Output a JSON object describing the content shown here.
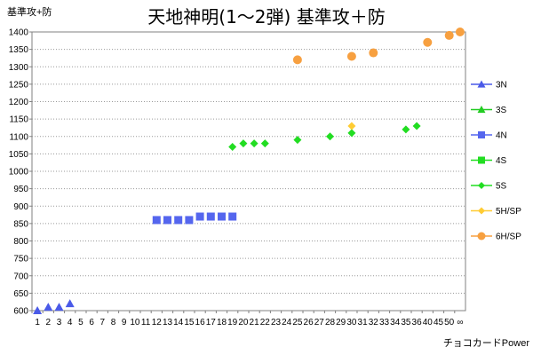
{
  "chart_data": {
    "type": "scatter",
    "title": "天地神明(1～2弾) 基準攻＋防",
    "ylabel": "基準攻+防",
    "xlabel": "チョコカードPower",
    "ylim": [
      600,
      1400
    ],
    "ystep": 50,
    "categories": [
      "1",
      "2",
      "3",
      "4",
      "5",
      "6",
      "7",
      "8",
      "9",
      "10",
      "11",
      "12",
      "13",
      "14",
      "15",
      "16",
      "17",
      "18",
      "19",
      "20",
      "21",
      "22",
      "23",
      "24",
      "25",
      "26",
      "27",
      "28",
      "29",
      "30",
      "31",
      "32",
      "33",
      "34",
      "35",
      "36",
      "40",
      "45",
      "50",
      "∞"
    ],
    "grid": "horizontal",
    "legend_position": "right",
    "series": [
      {
        "name": "3N",
        "marker": "triangle",
        "color": "#4a5ae8",
        "points": [
          [
            "1",
            600
          ],
          [
            "2",
            610
          ],
          [
            "3",
            610
          ],
          [
            "4",
            620
          ]
        ]
      },
      {
        "name": "3S",
        "marker": "triangle",
        "color": "#22cc22",
        "points": []
      },
      {
        "name": "4N",
        "marker": "square",
        "color": "#5566ee",
        "points": [
          [
            "12",
            860
          ],
          [
            "13",
            860
          ],
          [
            "14",
            860
          ],
          [
            "15",
            860
          ],
          [
            "16",
            870
          ],
          [
            "17",
            870
          ],
          [
            "18",
            870
          ],
          [
            "19",
            870
          ]
        ]
      },
      {
        "name": "4S",
        "marker": "square",
        "color": "#22dd22",
        "points": []
      },
      {
        "name": "5S",
        "marker": "diamond",
        "color": "#22dd22",
        "points": [
          [
            "19",
            1070
          ],
          [
            "20",
            1080
          ],
          [
            "21",
            1080
          ],
          [
            "22",
            1080
          ],
          [
            "25",
            1090
          ],
          [
            "28",
            1100
          ],
          [
            "30",
            1110
          ],
          [
            "35",
            1120
          ],
          [
            "36",
            1130
          ]
        ]
      },
      {
        "name": "5H/SP",
        "marker": "diamond",
        "color": "#ffcc33",
        "points": [
          [
            "30",
            1130
          ]
        ]
      },
      {
        "name": "6H/SP",
        "marker": "circle",
        "color": "#f7a040",
        "points": [
          [
            "25",
            1320
          ],
          [
            "30",
            1330
          ],
          [
            "32",
            1340
          ],
          [
            "40",
            1370
          ],
          [
            "50",
            1390
          ],
          [
            "∞",
            1400
          ]
        ]
      }
    ]
  }
}
